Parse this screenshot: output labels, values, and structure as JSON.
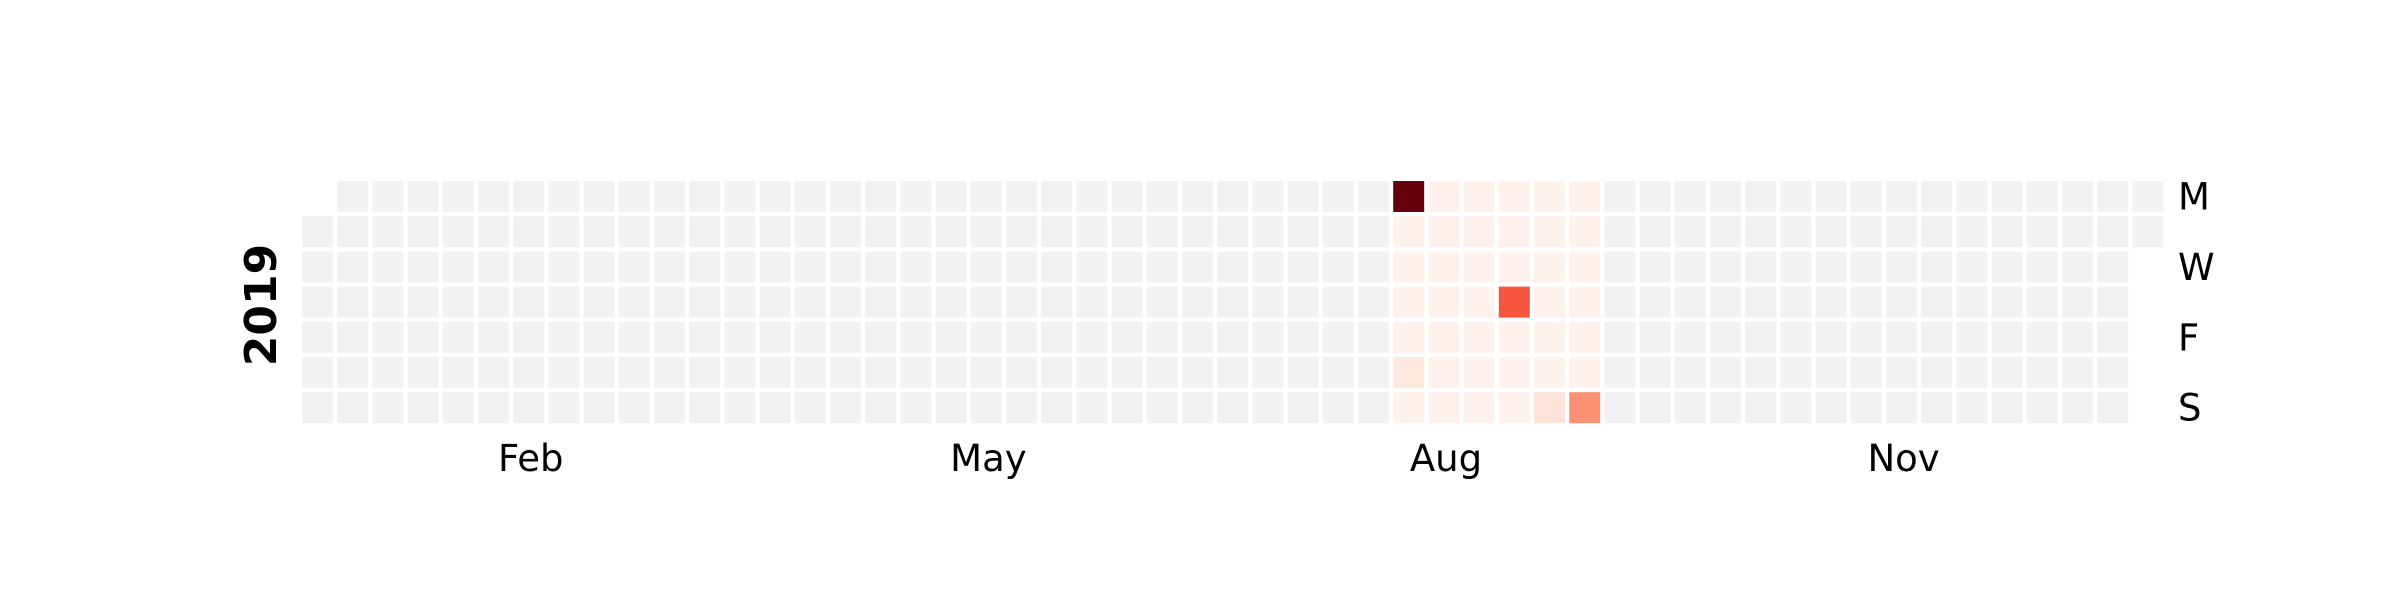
{
  "chart_data": {
    "type": "heatmap",
    "title": "",
    "year_label": "2019",
    "weeks": 53,
    "first_weekday_row": 1,
    "days_in_year": 365,
    "colors": {
      "empty": "#f2f2f2",
      "colormap": "Reds",
      "scale_low": "#fff5f0",
      "scale_high": "#67000d",
      "cell_border": "#ffffff"
    },
    "y_tick_labels": [
      {
        "row": 0,
        "text": "M"
      },
      {
        "row": 2,
        "text": "W"
      },
      {
        "row": 4,
        "text": "F"
      },
      {
        "row": 6,
        "text": "S"
      }
    ],
    "x_tick_labels": [
      {
        "week": 6.5,
        "text": "Feb"
      },
      {
        "week": 19.5,
        "text": "May"
      },
      {
        "week": 32.5,
        "text": "Aug"
      },
      {
        "week": 45.5,
        "text": "Nov"
      }
    ],
    "value_range": [
      0,
      100
    ],
    "active_range": {
      "start_week": 31,
      "end_week": 36
    },
    "active_baseline": 2,
    "values": [
      {
        "week": 31,
        "day": 0,
        "value": 100
      },
      {
        "week": 31,
        "day": 5,
        "value": 10
      },
      {
        "week": 34,
        "day": 3,
        "value": 65
      },
      {
        "week": 35,
        "day": 6,
        "value": 12
      },
      {
        "week": 36,
        "day": 6,
        "value": 45
      }
    ]
  }
}
